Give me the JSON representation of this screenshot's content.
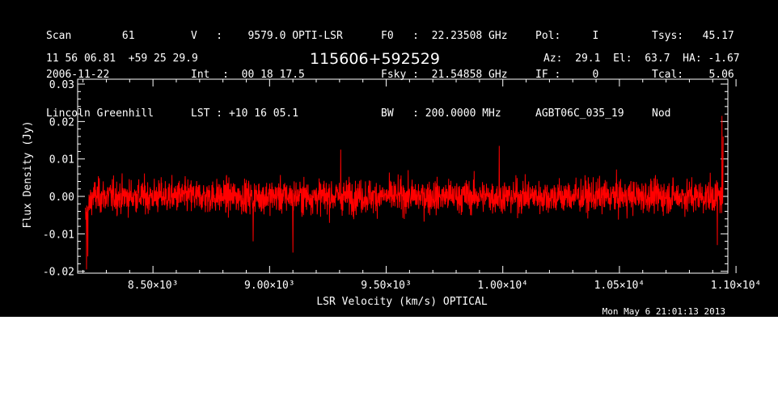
{
  "header": {
    "col1": [
      "Scan        61",
      "2006-11-22",
      "Lincoln Greenhill"
    ],
    "col2": [
      "V   :    9579.0 OPTI-LSR",
      "Int  :  00 18 17.5",
      "LST : +10 16 05.1"
    ],
    "col3": [
      "F0   :  22.23508 GHz",
      "Fsky :  21.54858 GHz",
      "BW   : 200.0000 MHz"
    ],
    "col4": [
      "Pol:     I",
      "IF :     0",
      "AGBT06C_035_19"
    ],
    "col5": [
      "Tsys:   45.17",
      "Tcal:    5.06",
      "Nod"
    ],
    "coords": "11 56 06.81  +59 25 29.9",
    "source": "115606+592529",
    "azelha": "Az:  29.1  El:  63.7  HA: -1.67",
    "timestamp": "Mon May  6 21:01:13 2013"
  },
  "chart_data": {
    "type": "line",
    "title": "115606+592529",
    "xlabel": "LSR Velocity (km/s) OPTICAL",
    "ylabel": "Flux Density (Jy)",
    "xlim": [
      8177,
      10965
    ],
    "ylim": [
      -0.0205,
      0.0313
    ],
    "x_ticks": [
      8500,
      9000,
      9500,
      10000,
      10500,
      11000
    ],
    "x_tick_labels": [
      "8.50×10³",
      "9.00×10³",
      "9.50×10³",
      "1.00×10⁴",
      "1.05×10⁴",
      "1.10×10⁴"
    ],
    "y_ticks": [
      -0.02,
      -0.01,
      0.0,
      0.01,
      0.02,
      0.03
    ],
    "y_tick_labels": [
      "-0.02",
      "-0.01",
      "0.00",
      "0.01",
      "0.02",
      "0.03"
    ],
    "series": [
      {
        "color": "#ff0000",
        "x_start": 8210,
        "x_end": 10945,
        "baseline_mean": 0.0,
        "noise_sigma": 0.0035,
        "features": [
          {
            "x": 8215,
            "y": -0.0195
          },
          {
            "x": 8220,
            "y": -0.016
          },
          {
            "x": 8930,
            "y": -0.012
          },
          {
            "x": 9100,
            "y": -0.015
          },
          {
            "x": 9305,
            "y": 0.0125
          },
          {
            "x": 9985,
            "y": 0.0135
          },
          {
            "x": 10920,
            "y": -0.013
          },
          {
            "x": 10940,
            "y": 0.0215
          },
          {
            "x": 10945,
            "y": 0.016
          }
        ]
      }
    ],
    "grid": false
  }
}
